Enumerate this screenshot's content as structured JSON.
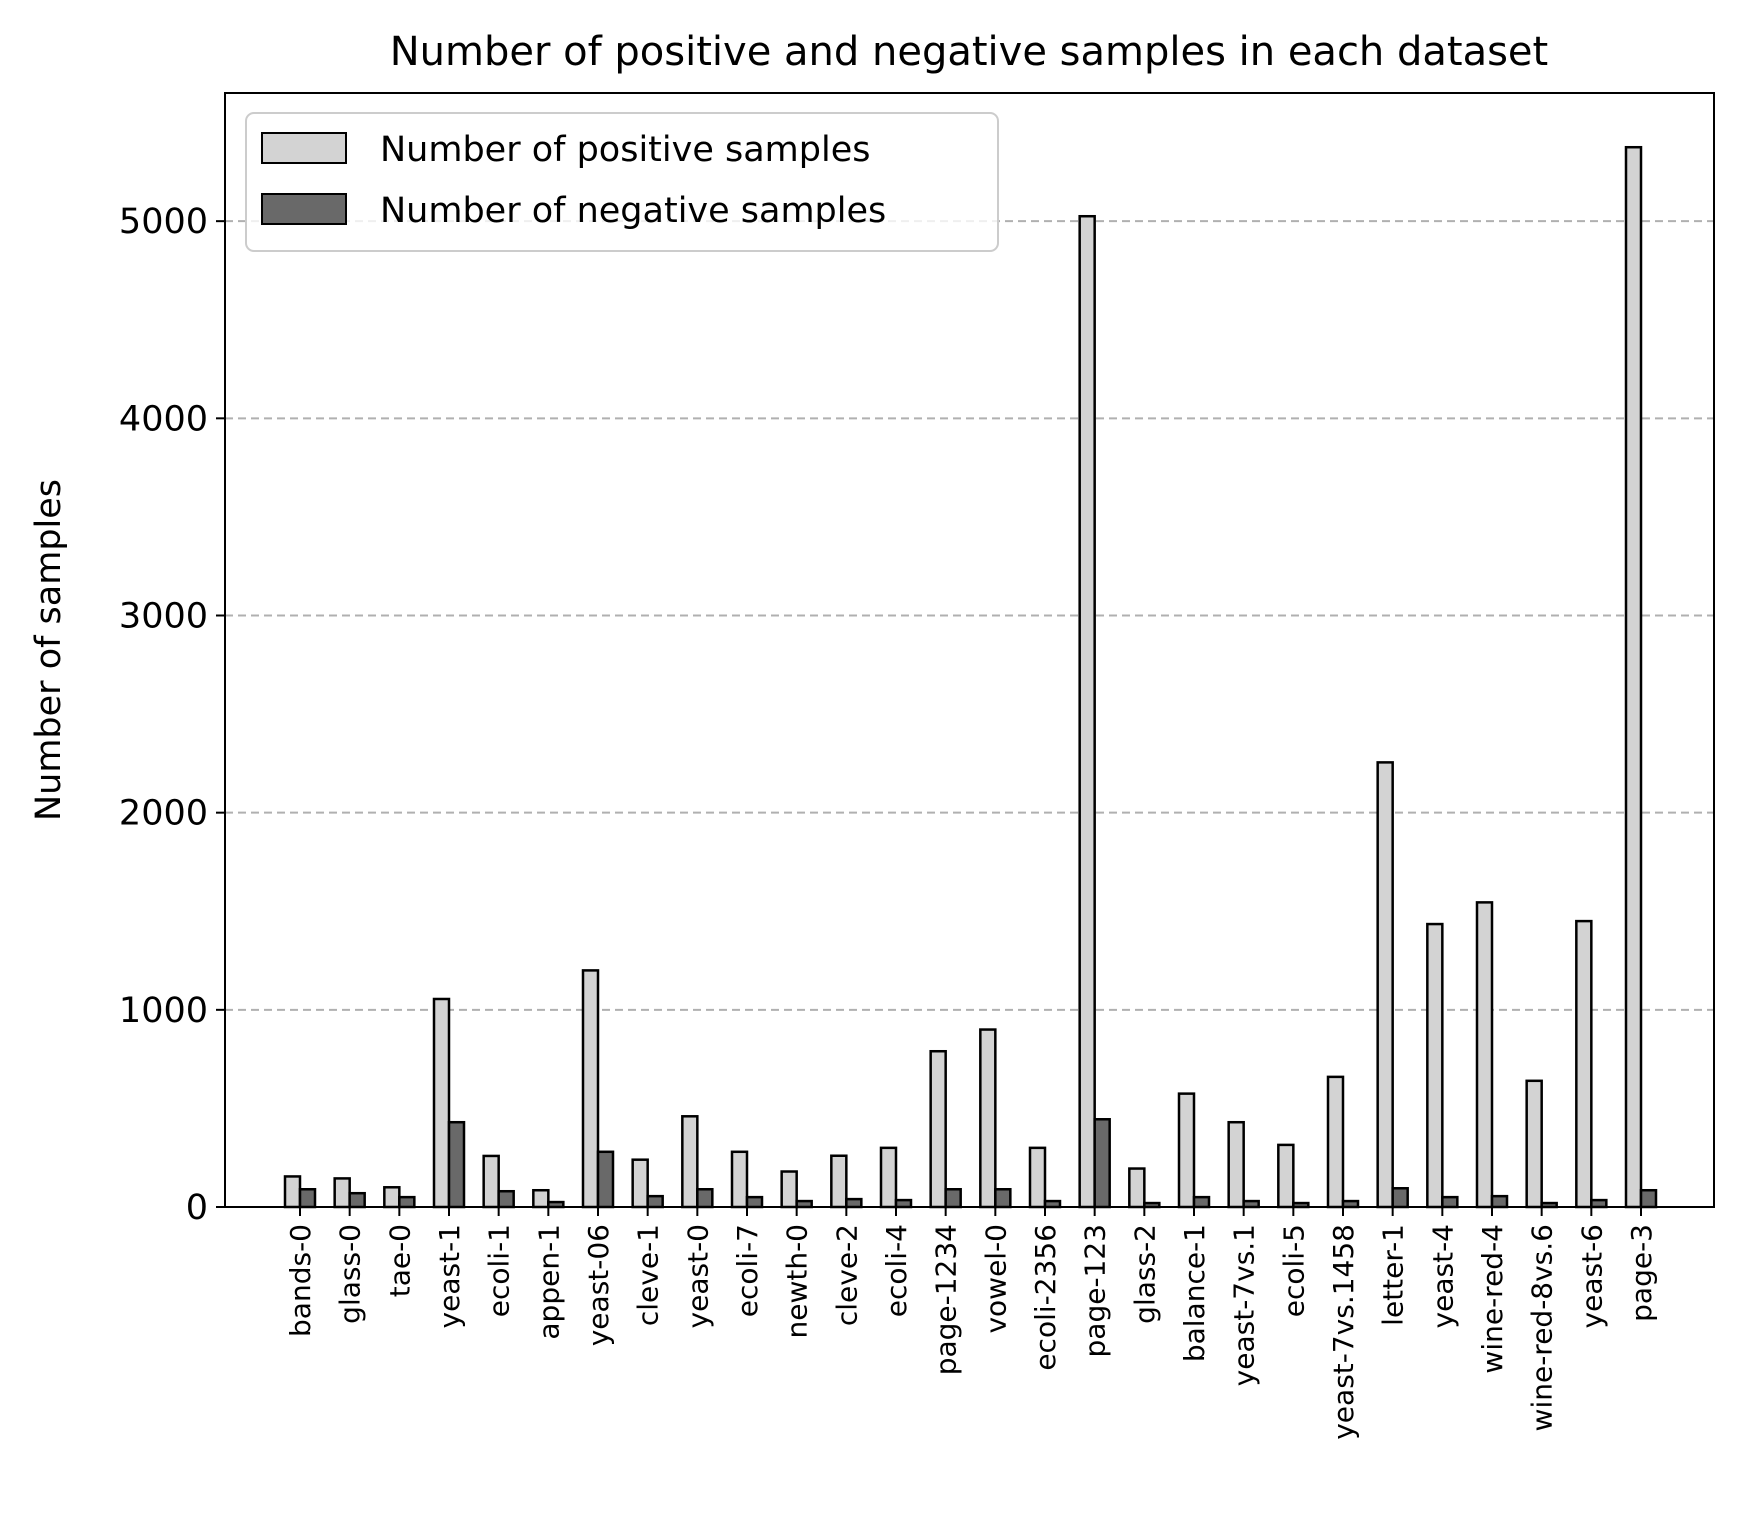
{
  "chart_data": {
    "type": "bar",
    "title": "Number of positive and negative samples in each dataset",
    "xlabel": "",
    "ylabel": "Number of samples",
    "ylim": [
      0,
      5650
    ],
    "yticks": [
      0,
      1000,
      2000,
      3000,
      4000,
      5000
    ],
    "ytick_labels": [
      "0",
      "1000",
      "2000",
      "3000",
      "4000",
      "5000"
    ],
    "grid": "y dashed",
    "legend_position": "top-left",
    "categories": [
      "bands-0",
      "glass-0",
      "tae-0",
      "yeast-1",
      "ecoli-1",
      "appen-1",
      "yeast-06",
      "cleve-1",
      "yeast-0",
      "ecoli-7",
      "newth-0",
      "cleve-2",
      "ecoli-4",
      "page-1234",
      "vowel-0",
      "ecoli-2356",
      "page-123",
      "glass-2",
      "balance-1",
      "yeast-7vs.1",
      "ecoli-5",
      "yeast-7vs.1458",
      "letter-1",
      "yeast-4",
      "wine-red-4",
      "wine-red-8vs.6",
      "yeast-6",
      "page-3"
    ],
    "series": [
      {
        "name": "Number of positive samples",
        "color": "#d3d3d3",
        "values": [
          155,
          145,
          100,
          1055,
          259,
          85,
          1200,
          240,
          460,
          280,
          180,
          260,
          300,
          790,
          900,
          300,
          5025,
          195,
          575,
          430,
          315,
          660,
          2255,
          1435,
          1545,
          640,
          1450,
          5375
        ]
      },
      {
        "name": "Number of negative samples",
        "color": "#696969",
        "values": [
          90,
          70,
          50,
          430,
          80,
          25,
          280,
          55,
          90,
          50,
          30,
          40,
          35,
          90,
          90,
          30,
          445,
          20,
          50,
          30,
          20,
          30,
          95,
          50,
          55,
          20,
          35,
          85
        ]
      }
    ]
  }
}
